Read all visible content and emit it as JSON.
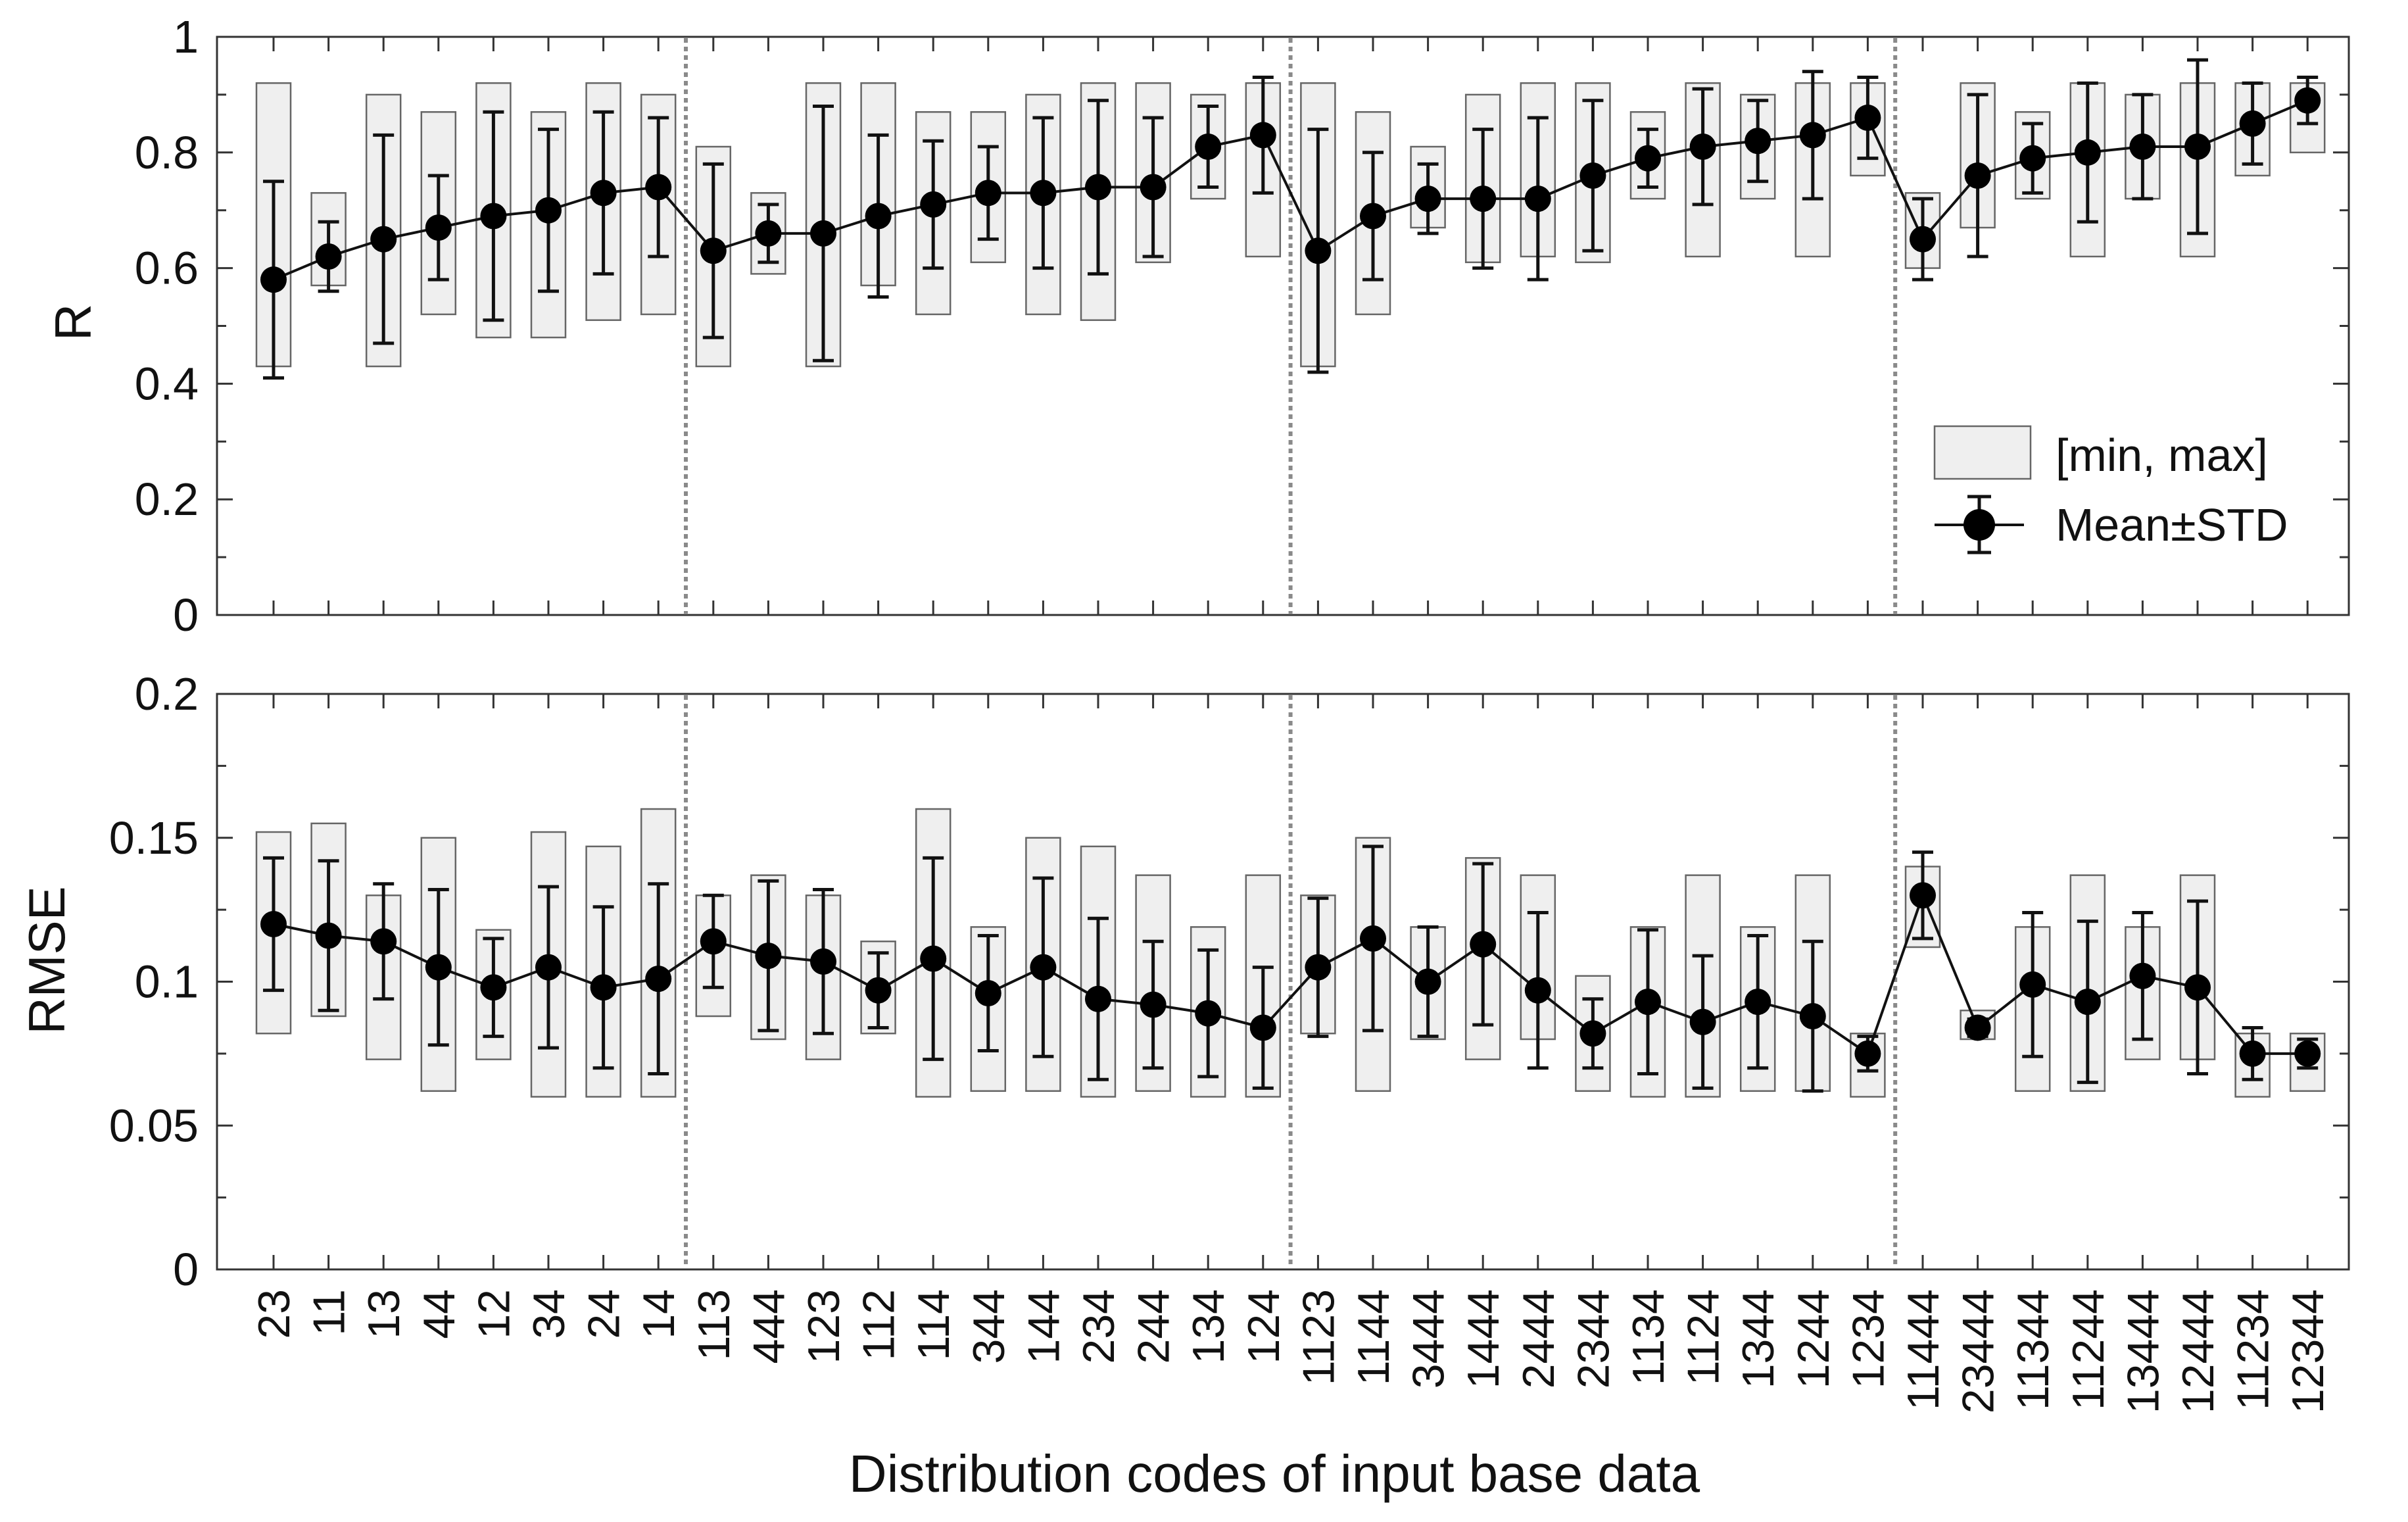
{
  "chart_data": {
    "type": "box-errorbar",
    "xlabel": "Distribution codes of input base data",
    "categories": [
      "23",
      "11",
      "13",
      "44",
      "12",
      "34",
      "24",
      "14",
      "113",
      "444",
      "123",
      "112",
      "114",
      "344",
      "144",
      "234",
      "244",
      "134",
      "124",
      "1123",
      "1144",
      "3444",
      "1444",
      "2444",
      "2344",
      "1134",
      "1124",
      "1344",
      "1244",
      "1234",
      "11444",
      "23444",
      "11344",
      "11244",
      "13444",
      "12444",
      "11234",
      "12344"
    ],
    "group_separators_after_index": [
      7,
      18,
      29
    ],
    "legend": {
      "position": "bottom-right of upper panel",
      "range_label": "[min, max]",
      "mean_label": "Mean±STD"
    },
    "panels": [
      {
        "ylabel": "R",
        "ylim": [
          0,
          1
        ],
        "yticks": [
          "0",
          "0.2",
          "0.4",
          "0.6",
          "0.8",
          "1"
        ],
        "mean": [
          0.58,
          0.62,
          0.65,
          0.67,
          0.69,
          0.7,
          0.73,
          0.74,
          0.63,
          0.66,
          0.66,
          0.69,
          0.71,
          0.73,
          0.73,
          0.74,
          0.74,
          0.81,
          0.83,
          0.63,
          0.69,
          0.72,
          0.72,
          0.72,
          0.76,
          0.79,
          0.81,
          0.82,
          0.83,
          0.86,
          0.65,
          0.76,
          0.79,
          0.8,
          0.81,
          0.81,
          0.85,
          0.89
        ],
        "std": [
          0.17,
          0.06,
          0.18,
          0.09,
          0.18,
          0.14,
          0.14,
          0.12,
          0.15,
          0.05,
          0.22,
          0.14,
          0.11,
          0.08,
          0.13,
          0.15,
          0.12,
          0.07,
          0.1,
          0.21,
          0.11,
          0.06,
          0.12,
          0.14,
          0.13,
          0.05,
          0.1,
          0.07,
          0.11,
          0.07,
          0.07,
          0.14,
          0.06,
          0.12,
          0.09,
          0.15,
          0.07,
          0.04
        ],
        "min": [
          0.43,
          0.57,
          0.43,
          0.52,
          0.48,
          0.48,
          0.51,
          0.52,
          0.43,
          0.59,
          0.43,
          0.57,
          0.52,
          0.61,
          0.52,
          0.51,
          0.61,
          0.72,
          0.62,
          0.43,
          0.52,
          0.67,
          0.61,
          0.62,
          0.61,
          0.72,
          0.62,
          0.72,
          0.62,
          0.76,
          0.6,
          0.67,
          0.72,
          0.62,
          0.72,
          0.62,
          0.76,
          0.8
        ],
        "max": [
          0.92,
          0.73,
          0.9,
          0.87,
          0.92,
          0.87,
          0.92,
          0.9,
          0.81,
          0.73,
          0.92,
          0.92,
          0.87,
          0.87,
          0.9,
          0.92,
          0.92,
          0.9,
          0.92,
          0.92,
          0.87,
          0.81,
          0.9,
          0.92,
          0.92,
          0.87,
          0.92,
          0.9,
          0.92,
          0.92,
          0.73,
          0.92,
          0.87,
          0.92,
          0.9,
          0.92,
          0.92,
          0.92
        ]
      },
      {
        "ylabel": "RMSE",
        "ylim": [
          0,
          0.2
        ],
        "yticks": [
          "0",
          "0.05",
          "0.1",
          "0.15",
          "0.2"
        ],
        "mean": [
          0.12,
          0.116,
          0.114,
          0.105,
          0.098,
          0.105,
          0.098,
          0.101,
          0.114,
          0.109,
          0.107,
          0.097,
          0.108,
          0.096,
          0.105,
          0.094,
          0.092,
          0.089,
          0.084,
          0.105,
          0.115,
          0.1,
          0.113,
          0.097,
          0.082,
          0.093,
          0.086,
          0.093,
          0.088,
          0.075,
          0.13,
          0.084,
          0.099,
          0.093,
          0.102,
          0.098,
          0.075,
          0.075
        ],
        "std": [
          0.023,
          0.026,
          0.02,
          0.027,
          0.017,
          0.028,
          0.028,
          0.033,
          0.016,
          0.026,
          0.025,
          0.013,
          0.035,
          0.02,
          0.031,
          0.028,
          0.022,
          0.022,
          0.021,
          0.024,
          0.032,
          0.019,
          0.028,
          0.027,
          0.012,
          0.025,
          0.023,
          0.023,
          0.026,
          0.006,
          0.015,
          0.003,
          0.025,
          0.028,
          0.022,
          0.03,
          0.009,
          0.005
        ],
        "min": [
          0.082,
          0.088,
          0.073,
          0.062,
          0.073,
          0.06,
          0.06,
          0.06,
          0.088,
          0.08,
          0.073,
          0.082,
          0.06,
          0.062,
          0.062,
          0.06,
          0.062,
          0.06,
          0.06,
          0.082,
          0.062,
          0.08,
          0.073,
          0.08,
          0.062,
          0.06,
          0.06,
          0.062,
          0.062,
          0.06,
          0.112,
          0.08,
          0.062,
          0.062,
          0.073,
          0.073,
          0.06,
          0.062
        ],
        "max": [
          0.152,
          0.155,
          0.13,
          0.15,
          0.118,
          0.152,
          0.147,
          0.16,
          0.13,
          0.137,
          0.13,
          0.114,
          0.16,
          0.119,
          0.15,
          0.147,
          0.137,
          0.119,
          0.137,
          0.13,
          0.15,
          0.119,
          0.143,
          0.137,
          0.102,
          0.119,
          0.137,
          0.119,
          0.137,
          0.082,
          0.14,
          0.09,
          0.119,
          0.137,
          0.119,
          0.137,
          0.082,
          0.082
        ]
      }
    ]
  }
}
